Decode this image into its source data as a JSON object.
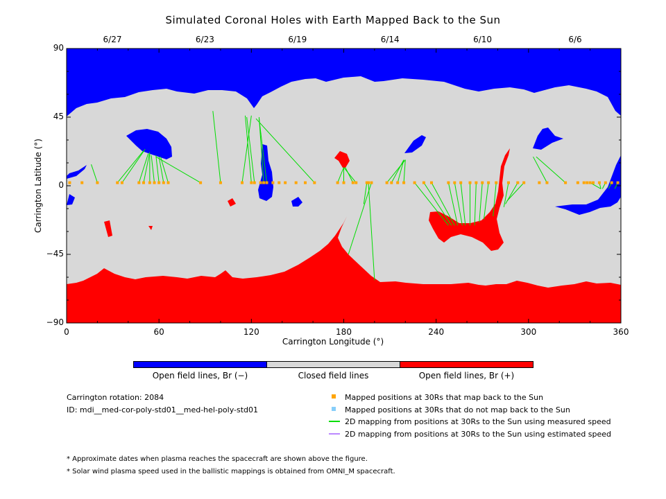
{
  "title": "Simulated Coronal Holes with Earth Mapped Back to the Sun",
  "dates": [
    {
      "label": "6/27",
      "lon": 20
    },
    {
      "label": "6/23",
      "lon": 60
    },
    {
      "label": "6/19",
      "lon": 100
    },
    {
      "label": "6/14",
      "lon": 140
    },
    {
      "label": "6/10",
      "lon": 180
    },
    {
      "label": "6/6",
      "lon": 220
    }
  ],
  "colorbar": {
    "labels": [
      "Open field lines, Br (−)",
      "Closed field lines",
      "Open field lines, Br (+)"
    ],
    "colors": [
      "#0000ff",
      "#d8d8d8",
      "#ff0000"
    ]
  },
  "info": {
    "rotation": "Carrington rotation: 2084",
    "id": "ID: mdi__med-cor-poly-std01__med-hel-poly-std01"
  },
  "legend": [
    {
      "label": "Mapped positions at 30Rs that map back to the Sun",
      "symbol": "square",
      "color": "#ffa500"
    },
    {
      "label": "Mapped positions at 30Rs that do not map back to the Sun",
      "symbol": "square",
      "color": "#87cefa"
    },
    {
      "label": "2D mapping from positions at 30Rs to the Sun using measured speed",
      "symbol": "line",
      "color": "#00dd00"
    },
    {
      "label": "2D mapping from positions at 30Rs to the Sun using estimated speed",
      "symbol": "line",
      "color": "#bb88ff"
    }
  ],
  "footnotes": [
    "* Approximate dates when plasma reaches the spacecraft are shown above the figure.",
    "* Solar wind plasma speed used in the ballistic mappings is obtained from OMNI_M spacecraft."
  ],
  "chart_data": {
    "type": "scatter",
    "title": "Simulated Coronal Holes with Earth Mapped Back to the Sun",
    "xlabel": "Carrington Longitude (°)",
    "ylabel": "Carrington Latitude (°)",
    "xlim": [
      0,
      360
    ],
    "ylim": [
      -90,
      90
    ],
    "xticks": [
      0,
      60,
      120,
      180,
      240,
      300,
      360
    ],
    "yticks": [
      -90,
      -45,
      0,
      45,
      90
    ],
    "xtick_labels": [
      "0",
      "60",
      "120",
      "180",
      "240",
      "300",
      "360"
    ],
    "ytick_labels": [
      "−90",
      "−45",
      "0",
      "45",
      "90"
    ],
    "top_axis_labels": [
      "6/27",
      "6/23",
      "6/19",
      "6/14",
      "6/10",
      "6/6"
    ],
    "mapped_points": [
      [
        2,
        2
      ],
      [
        10,
        2
      ],
      [
        20,
        2
      ],
      [
        33,
        2
      ],
      [
        36,
        2
      ],
      [
        47,
        2
      ],
      [
        50,
        2
      ],
      [
        54,
        2
      ],
      [
        57,
        2
      ],
      [
        60,
        2
      ],
      [
        63,
        2
      ],
      [
        66,
        2
      ],
      [
        87,
        2
      ],
      [
        100,
        2
      ],
      [
        114,
        2
      ],
      [
        120,
        2
      ],
      [
        122,
        2
      ],
      [
        126,
        2
      ],
      [
        128,
        2
      ],
      [
        130,
        2
      ],
      [
        134,
        2
      ],
      [
        138,
        2
      ],
      [
        142,
        2
      ],
      [
        149,
        2
      ],
      [
        155,
        2
      ],
      [
        161,
        2
      ],
      [
        176,
        2
      ],
      [
        180,
        2
      ],
      [
        186,
        2
      ],
      [
        188,
        2
      ],
      [
        195,
        2
      ],
      [
        196,
        2
      ],
      [
        198,
        2
      ],
      [
        208,
        2
      ],
      [
        211,
        2
      ],
      [
        215,
        2
      ],
      [
        219,
        2
      ],
      [
        226,
        2
      ],
      [
        232,
        2
      ],
      [
        237,
        2
      ],
      [
        248,
        2
      ],
      [
        252,
        2
      ],
      [
        256,
        2
      ],
      [
        262,
        2
      ],
      [
        266,
        2
      ],
      [
        270,
        2
      ],
      [
        274,
        2
      ],
      [
        279,
        2
      ],
      [
        287,
        2
      ],
      [
        293,
        2
      ],
      [
        297,
        2
      ],
      [
        307,
        2
      ],
      [
        312,
        2
      ],
      [
        324,
        2
      ],
      [
        332,
        2
      ],
      [
        336,
        2
      ],
      [
        338,
        2
      ],
      [
        340,
        2
      ],
      [
        342,
        2
      ],
      [
        346,
        2
      ],
      [
        350,
        2
      ],
      [
        354,
        2
      ],
      [
        358,
        2
      ]
    ],
    "mapping_lines": [
      [
        [
          20,
          2
        ],
        [
          16,
          14
        ]
      ],
      [
        [
          33,
          2
        ],
        [
          50,
          23
        ]
      ],
      [
        [
          36,
          2
        ],
        [
          51,
          24
        ]
      ],
      [
        [
          47,
          2
        ],
        [
          53,
          21
        ]
      ],
      [
        [
          50,
          2
        ],
        [
          54,
          22
        ]
      ],
      [
        [
          54,
          2
        ],
        [
          54,
          21
        ]
      ],
      [
        [
          57,
          2
        ],
        [
          55,
          20
        ]
      ],
      [
        [
          60,
          2
        ],
        [
          58,
          20
        ]
      ],
      [
        [
          63,
          2
        ],
        [
          60,
          19
        ]
      ],
      [
        [
          66,
          2
        ],
        [
          61,
          19
        ]
      ],
      [
        [
          87,
          2
        ],
        [
          58,
          19
        ]
      ],
      [
        [
          100,
          2
        ],
        [
          95,
          49
        ]
      ],
      [
        [
          114,
          2
        ],
        [
          120,
          46
        ]
      ],
      [
        [
          120,
          2
        ],
        [
          116,
          46
        ]
      ],
      [
        [
          122,
          2
        ],
        [
          117,
          45
        ]
      ],
      [
        [
          128,
          2
        ],
        [
          125,
          45
        ]
      ],
      [
        [
          130,
          2
        ],
        [
          125,
          44
        ]
      ],
      [
        [
          161,
          2
        ],
        [
          123,
          44
        ]
      ],
      [
        [
          176,
          2
        ],
        [
          180,
          12
        ]
      ],
      [
        [
          180,
          2
        ],
        [
          180,
          12
        ]
      ],
      [
        [
          186,
          2
        ],
        [
          181,
          12
        ]
      ],
      [
        [
          188,
          2
        ],
        [
          180,
          12
        ]
      ],
      [
        [
          195,
          2
        ],
        [
          193,
          -12
        ]
      ],
      [
        [
          196,
          2
        ],
        [
          200,
          -62
        ]
      ],
      [
        [
          198,
          2
        ],
        [
          183,
          -45
        ]
      ],
      [
        [
          208,
          2
        ],
        [
          220,
          17
        ]
      ],
      [
        [
          211,
          2
        ],
        [
          219,
          17
        ]
      ],
      [
        [
          215,
          2
        ],
        [
          219,
          17
        ]
      ],
      [
        [
          219,
          2
        ],
        [
          220,
          17
        ]
      ],
      [
        [
          226,
          2
        ],
        [
          248,
          -26
        ]
      ],
      [
        [
          232,
          2
        ],
        [
          250,
          -26
        ]
      ],
      [
        [
          237,
          2
        ],
        [
          252,
          -26
        ]
      ],
      [
        [
          248,
          2
        ],
        [
          254,
          -26
        ]
      ],
      [
        [
          252,
          2
        ],
        [
          257,
          -26
        ]
      ],
      [
        [
          256,
          2
        ],
        [
          259,
          -26
        ]
      ],
      [
        [
          262,
          2
        ],
        [
          262,
          -26
        ]
      ],
      [
        [
          266,
          2
        ],
        [
          265,
          -26
        ]
      ],
      [
        [
          270,
          2
        ],
        [
          268,
          -24
        ]
      ],
      [
        [
          274,
          2
        ],
        [
          271,
          -22
        ]
      ],
      [
        [
          279,
          2
        ],
        [
          277,
          -20
        ]
      ],
      [
        [
          287,
          2
        ],
        [
          284,
          -14
        ]
      ],
      [
        [
          293,
          2
        ],
        [
          285,
          -12
        ]
      ],
      [
        [
          297,
          2
        ],
        [
          286,
          -10
        ]
      ],
      [
        [
          312,
          2
        ],
        [
          303,
          19
        ]
      ],
      [
        [
          324,
          2
        ],
        [
          305,
          19
        ]
      ],
      [
        [
          340,
          2
        ],
        [
          347,
          -2
        ]
      ],
      [
        [
          346,
          2
        ],
        [
          347,
          -2
        ]
      ],
      [
        [
          350,
          2
        ],
        [
          348,
          -2
        ]
      ],
      [
        [
          354,
          2
        ],
        [
          352,
          -2
        ]
      ],
      [
        [
          358,
          2
        ],
        [
          356,
          -2
        ]
      ]
    ]
  }
}
